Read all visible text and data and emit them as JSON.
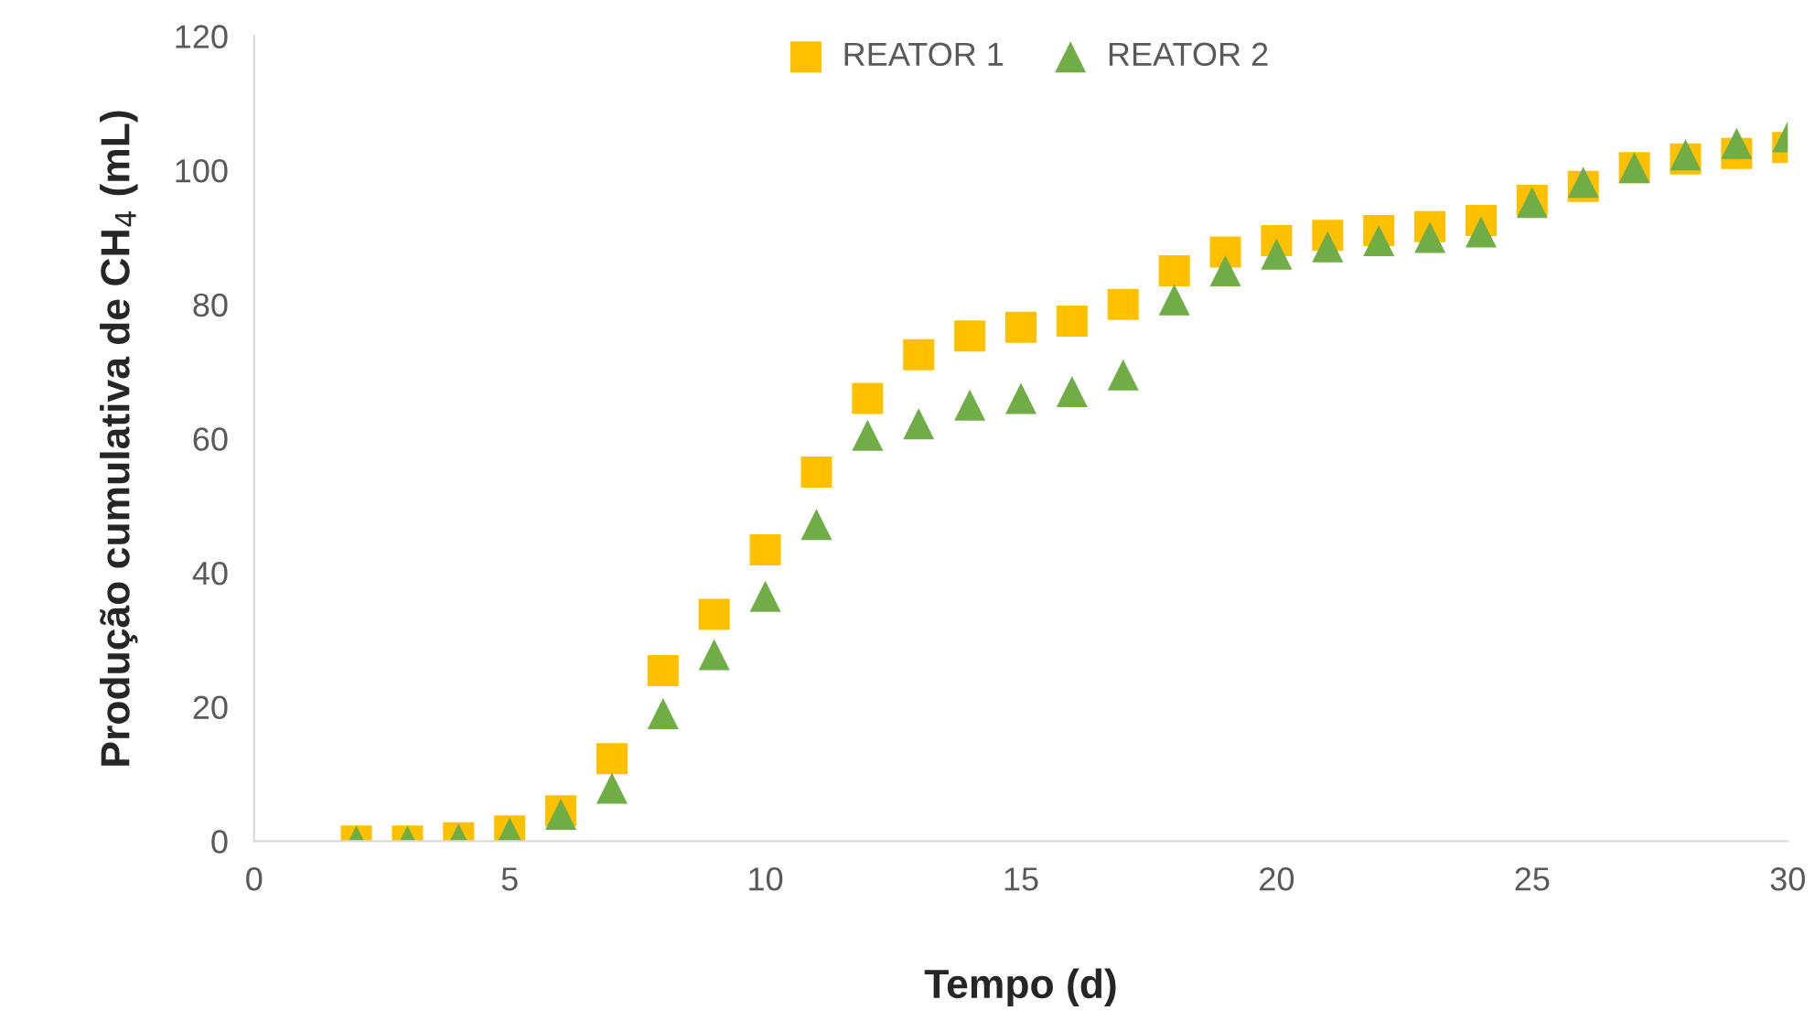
{
  "chart_data": {
    "type": "scatter",
    "xlabel": "Tempo (d)",
    "ylabel": "Produção cumulativa de CH$_{4}$ (mL)",
    "x": [
      2,
      3,
      4,
      5,
      6,
      7,
      8,
      9,
      10,
      11,
      12,
      13,
      14,
      15,
      16,
      17,
      18,
      19,
      20,
      21,
      22,
      23,
      24,
      25,
      26,
      27,
      28,
      29,
      30
    ],
    "series": [
      {
        "name": "REATOR 1",
        "color": "#ffc000",
        "marker": "square",
        "values": [
          0,
          0,
          0.5,
          1.5,
          4.5,
          12.3,
          25.4,
          33.8,
          43.4,
          55,
          66,
          72.5,
          75.3,
          76.6,
          77.5,
          80,
          85,
          87.8,
          89.5,
          90.3,
          91,
          91.6,
          92.5,
          95.5,
          97.6,
          100.4,
          101.7,
          102.5,
          103.4
        ]
      },
      {
        "name": "REATOR 2",
        "color": "#70ad47",
        "marker": "triangle",
        "values": [
          0,
          0,
          0.3,
          1.2,
          4,
          7.9,
          19,
          27.8,
          36.5,
          47.2,
          60.5,
          62.2,
          65,
          66,
          67,
          69.5,
          80.7,
          85,
          87.5,
          88.6,
          89.5,
          90,
          90.8,
          95.2,
          98.2,
          100.4,
          102.3,
          104,
          105
        ]
      }
    ],
    "xlim": [
      0,
      30
    ],
    "xticks": [
      0,
      5,
      10,
      15,
      20,
      25,
      30
    ],
    "ylim": [
      0,
      120
    ],
    "yticks": [
      0,
      20,
      40,
      60,
      80,
      100,
      120
    ],
    "grid": false,
    "legend": "top"
  }
}
